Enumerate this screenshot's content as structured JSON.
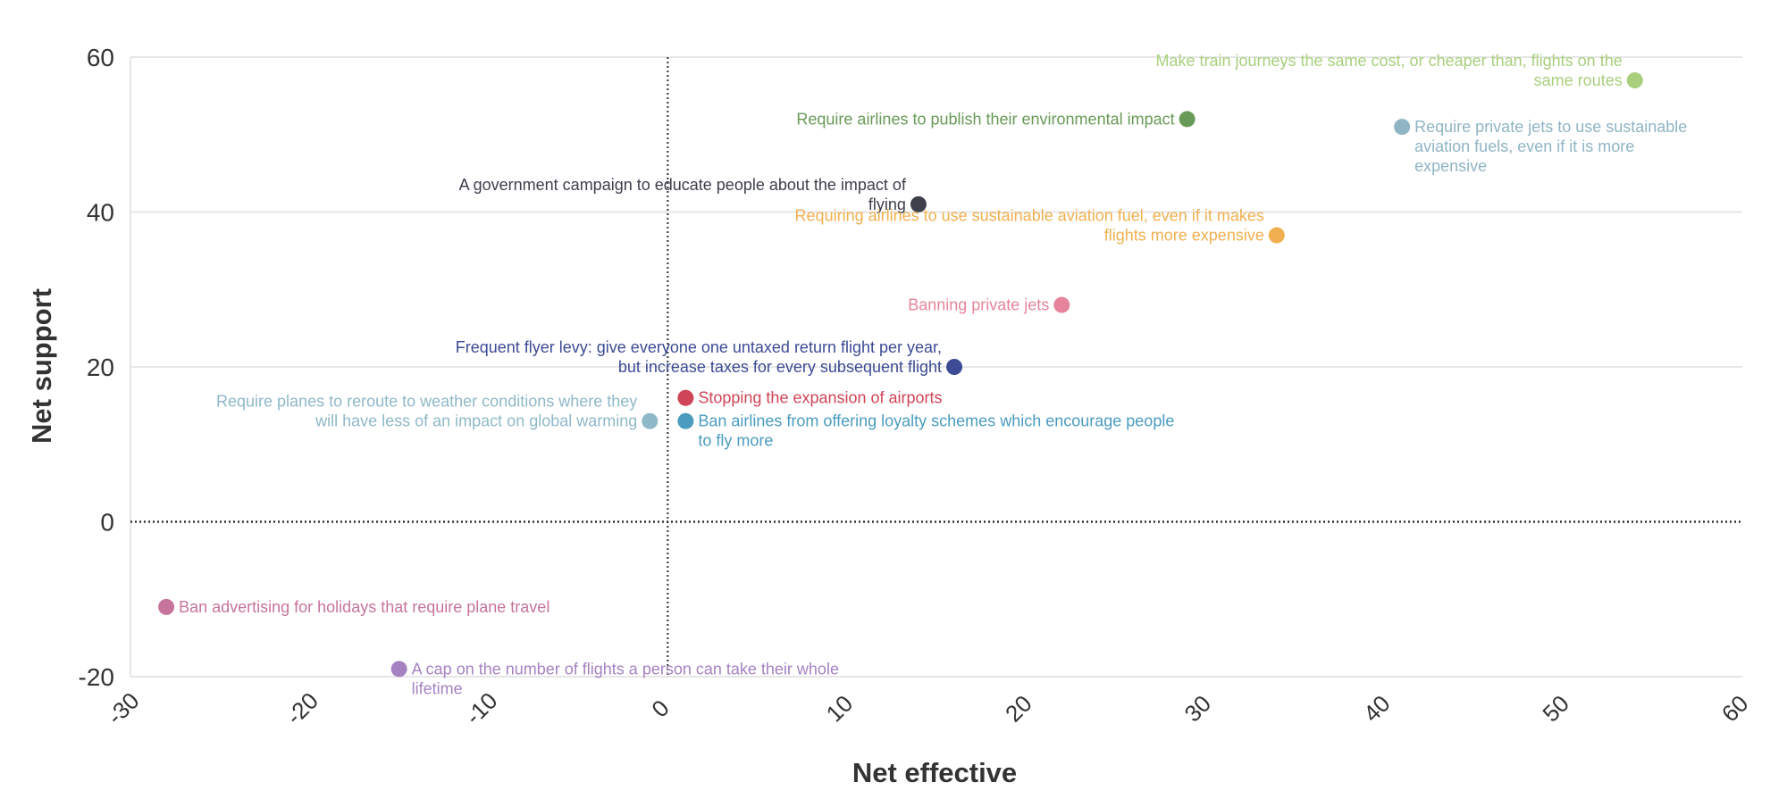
{
  "chart_data": {
    "type": "scatter",
    "title": "",
    "xlabel": "Net effective",
    "ylabel": "Net support",
    "xlim": [
      -30,
      60
    ],
    "ylim": [
      -20,
      60
    ],
    "xticks": [
      -30,
      -20,
      -10,
      0,
      10,
      20,
      30,
      40,
      50,
      60
    ],
    "yticks": [
      -20,
      0,
      20,
      40,
      60
    ],
    "grid": true,
    "reference_lines": {
      "x": 0,
      "y": 0
    },
    "points": [
      {
        "x": 54,
        "y": 57,
        "color": "#a9cf7d",
        "label_lines": [
          "Make train journeys the same cost, or cheaper than, flights on the",
          "same routes"
        ],
        "align": "left"
      },
      {
        "x": 29,
        "y": 52,
        "color": "#6a9a58",
        "label_lines": [
          "Require airlines to publish their environmental impact"
        ],
        "align": "left"
      },
      {
        "x": 41,
        "y": 51,
        "color": "#8fb4c4",
        "label_lines": [
          "Require private jets to use sustainable",
          "aviation fuels, even if it is more",
          "expensive"
        ],
        "align": "right"
      },
      {
        "x": 14,
        "y": 41,
        "color": "#3d3f4a",
        "label_lines": [
          "A government campaign to educate people about the impact of",
          "flying"
        ],
        "align": "left"
      },
      {
        "x": 34,
        "y": 37,
        "color": "#f0b050",
        "label_lines": [
          "Requiring airlines to use sustainable aviation fuel, even if it makes",
          "flights more expensive"
        ],
        "align": "left"
      },
      {
        "x": 22,
        "y": 28,
        "color": "#e5849a",
        "label_lines": [
          "Banning private jets"
        ],
        "align": "left"
      },
      {
        "x": 16,
        "y": 20,
        "color": "#3d4b94",
        "label_lines": [
          "Frequent flyer levy: give everyone one untaxed return flight per year,",
          "but increase taxes for every subsequent flight"
        ],
        "align": "left"
      },
      {
        "x": 1,
        "y": 16,
        "color": "#cf4557",
        "label_lines": [
          "Stopping the expansion of airports"
        ],
        "align": "right"
      },
      {
        "x": 1,
        "y": 13,
        "color": "#4a9cbf",
        "label_lines": [
          "Ban airlines from offering loyalty schemes which encourage people",
          "to fly more"
        ],
        "align": "right"
      },
      {
        "x": -1,
        "y": 13,
        "color": "#8fb8c8",
        "label_lines": [
          "Require planes to reroute to weather conditions where they",
          "will have less of an impact on global warming"
        ],
        "align": "left"
      },
      {
        "x": -28,
        "y": -11,
        "color": "#c7749c",
        "label_lines": [
          "Ban advertising for holidays that require plane travel"
        ],
        "align": "right"
      },
      {
        "x": -15,
        "y": -19,
        "color": "#a582c2",
        "label_lines": [
          "A cap on the number of flights a person can take their whole",
          "lifetime"
        ],
        "align": "right"
      }
    ]
  }
}
